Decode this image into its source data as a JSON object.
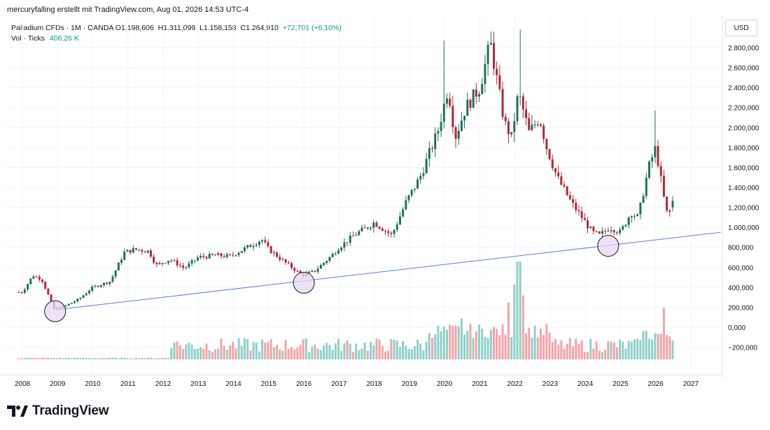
{
  "header": {
    "credit": "mercuryfalling erstellt mit TradingView.com, Aug 01, 2026 14:53 UTC-4"
  },
  "legend": {
    "symbol": "Palladium CFDs · 1M · OANDA",
    "open": "O1.198,606",
    "high": "H1.311,099",
    "low": "L1.158,158",
    "close": "C1.264,910",
    "change": "+72,701 (+6,10%)",
    "volume_label": "Vol · Ticks",
    "volume_value": "406,26 K"
  },
  "price_axis": {
    "currency": "USD",
    "ticks": [
      "2.800,000",
      "2.600,000",
      "2.400,000",
      "2.200,000",
      "2.000,000",
      "1.800,000",
      "1.600,000",
      "1.400,000",
      "1.200,000",
      "1.000,000",
      "800,000",
      "600,000",
      "400,000",
      "200,000",
      "0,000",
      "−200,000"
    ]
  },
  "branding": {
    "name": "TradingView"
  },
  "colors": {
    "up": "#089981",
    "down": "#f23645",
    "up_body": "#22705a",
    "down_body": "#b2283a",
    "vol_up": "#8fd0c8",
    "vol_down": "#f4a3a8",
    "trendline": "#5b7fd6",
    "circle_fill": "#e8d7f2",
    "circle_stroke": "#131722"
  },
  "chart_data": {
    "type": "candlestick",
    "title": "Palladium CFDs · 1M · OANDA",
    "xlabel": "",
    "ylabel": "USD",
    "ylim": [
      -280,
      2980
    ],
    "x_ticks": [
      "2008",
      "2009",
      "2010",
      "2011",
      "2012",
      "2013",
      "2014",
      "2015",
      "2016",
      "2017",
      "2018",
      "2019",
      "2020",
      "2021",
      "2022",
      "2023",
      "2024",
      "2025",
      "2026",
      "2027"
    ],
    "grid": true,
    "series": [
      {
        "name": "Palladium CFDs · 1M · OANDA",
        "anchors_yearly_close": [
          [
            2008.0,
            350
          ],
          [
            2008.3,
            520
          ],
          [
            2008.55,
            480
          ],
          [
            2008.9,
            180
          ],
          [
            2009.2,
            210
          ],
          [
            2009.6,
            280
          ],
          [
            2010.0,
            400
          ],
          [
            2010.5,
            460
          ],
          [
            2010.9,
            750
          ],
          [
            2011.2,
            780
          ],
          [
            2011.6,
            760
          ],
          [
            2011.8,
            620
          ],
          [
            2012.2,
            680
          ],
          [
            2012.6,
            590
          ],
          [
            2013.0,
            700
          ],
          [
            2013.5,
            720
          ],
          [
            2013.9,
            710
          ],
          [
            2014.5,
            820
          ],
          [
            2014.8,
            880
          ],
          [
            2015.0,
            780
          ],
          [
            2015.5,
            640
          ],
          [
            2015.95,
            520
          ],
          [
            2016.3,
            560
          ],
          [
            2016.8,
            720
          ],
          [
            2017.0,
            800
          ],
          [
            2017.5,
            940
          ],
          [
            2017.8,
            1000
          ],
          [
            2018.0,
            1050
          ],
          [
            2018.5,
            920
          ],
          [
            2018.9,
            1250
          ],
          [
            2019.3,
            1500
          ],
          [
            2019.8,
            1950
          ],
          [
            2020.1,
            2400
          ],
          [
            2020.3,
            1900
          ],
          [
            2020.6,
            2200
          ],
          [
            2021.0,
            2400
          ],
          [
            2021.3,
            2850
          ],
          [
            2021.7,
            2050
          ],
          [
            2021.9,
            1900
          ],
          [
            2022.1,
            2350
          ],
          [
            2022.4,
            1950
          ],
          [
            2022.7,
            2100
          ],
          [
            2022.9,
            1800
          ],
          [
            2023.2,
            1500
          ],
          [
            2023.6,
            1250
          ],
          [
            2023.9,
            1100
          ],
          [
            2024.2,
            950
          ],
          [
            2024.4,
            920
          ],
          [
            2024.7,
            1000
          ],
          [
            2025.0,
            950
          ],
          [
            2025.3,
            1150
          ],
          [
            2025.5,
            1100
          ],
          [
            2025.8,
            1600
          ],
          [
            2026.0,
            1800
          ],
          [
            2026.3,
            1150
          ],
          [
            2026.45,
            1150
          ],
          [
            2026.55,
            1265
          ]
        ]
      }
    ],
    "volume": {
      "name": "Vol · Ticks",
      "peaks": [
        [
          2022.1,
          550
        ],
        [
          2021.8,
          30
        ],
        [
          2020.5,
          230
        ],
        [
          2026.2,
          50
        ]
      ]
    },
    "annotations": {
      "trendline": {
        "from": [
          2008.95,
          175
        ],
        "to": [
          2027.85,
          950
        ]
      },
      "circles": [
        {
          "x": 2008.93,
          "y": 160
        },
        {
          "x": 2016.0,
          "y": 445
        },
        {
          "x": 2024.65,
          "y": 815
        }
      ]
    }
  }
}
